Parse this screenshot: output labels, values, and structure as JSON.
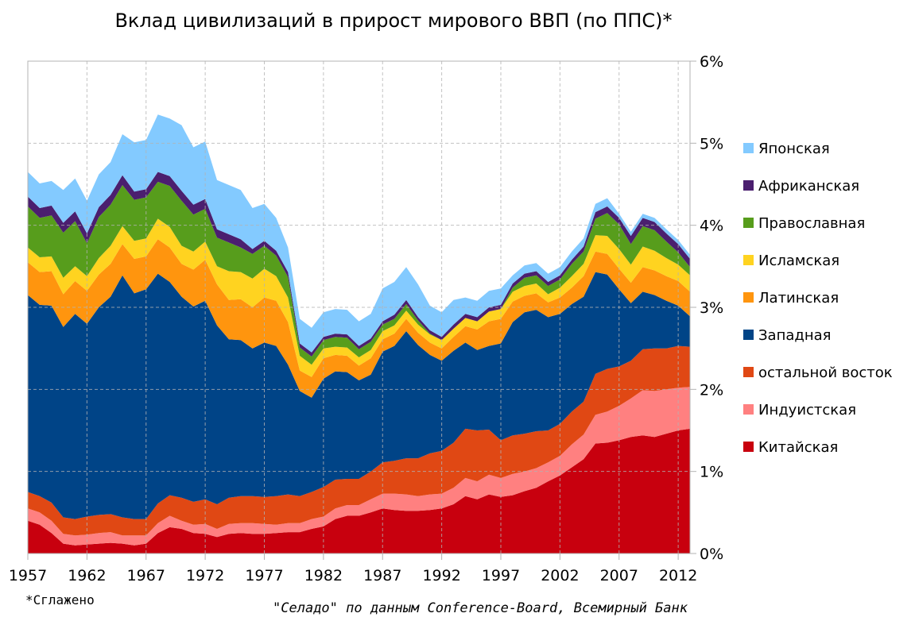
{
  "chart_data": {
    "type": "area",
    "stacked": true,
    "title": "Вклад цивилизаций в прирост мирового ВВП (по ППС)*",
    "footnote": "*Сглажено",
    "source": "\"Селадо\" по данным Conference-Board, Всемирный Банк",
    "y_axis_side": "right",
    "ylim": [
      0,
      6
    ],
    "y_ticks": [
      {
        "value": 0,
        "label": "0%"
      },
      {
        "value": 1,
        "label": "1%"
      },
      {
        "value": 2,
        "label": "2%"
      },
      {
        "value": 3,
        "label": "3%"
      },
      {
        "value": 4,
        "label": "4%"
      },
      {
        "value": 5,
        "label": "5%"
      },
      {
        "value": 6,
        "label": "6%"
      }
    ],
    "x_ticks": [
      {
        "value": 1957,
        "label": "1957"
      },
      {
        "value": 1962,
        "label": "1962"
      },
      {
        "value": 1967,
        "label": "1967"
      },
      {
        "value": 1972,
        "label": "1972"
      },
      {
        "value": 1977,
        "label": "1977"
      },
      {
        "value": 1982,
        "label": "1982"
      },
      {
        "value": 1987,
        "label": "1987"
      },
      {
        "value": 1992,
        "label": "1992"
      },
      {
        "value": 1997,
        "label": "1997"
      },
      {
        "value": 2002,
        "label": "2002"
      },
      {
        "value": 2007,
        "label": "2007"
      },
      {
        "value": 2012,
        "label": "2012"
      }
    ],
    "xlim": [
      1957,
      2013
    ],
    "grid": true,
    "legend_position": "right",
    "x": [
      1957,
      1958,
      1959,
      1960,
      1961,
      1962,
      1963,
      1964,
      1965,
      1966,
      1967,
      1968,
      1969,
      1970,
      1971,
      1972,
      1973,
      1974,
      1975,
      1976,
      1977,
      1978,
      1979,
      1980,
      1981,
      1982,
      1983,
      1984,
      1985,
      1986,
      1987,
      1988,
      1989,
      1990,
      1991,
      1992,
      1993,
      1994,
      1995,
      1996,
      1997,
      1998,
      1999,
      2000,
      2001,
      2002,
      2003,
      2004,
      2005,
      2006,
      2007,
      2008,
      2009,
      2010,
      2011,
      2012,
      2013
    ],
    "series": [
      {
        "name": "Китайская",
        "color": "#c8000e",
        "values": [
          0.4,
          0.35,
          0.25,
          0.12,
          0.1,
          0.11,
          0.12,
          0.13,
          0.12,
          0.1,
          0.12,
          0.25,
          0.32,
          0.3,
          0.25,
          0.24,
          0.2,
          0.24,
          0.25,
          0.24,
          0.24,
          0.25,
          0.26,
          0.26,
          0.3,
          0.33,
          0.42,
          0.46,
          0.46,
          0.5,
          0.55,
          0.53,
          0.52,
          0.52,
          0.53,
          0.55,
          0.6,
          0.7,
          0.66,
          0.72,
          0.69,
          0.71,
          0.76,
          0.8,
          0.88,
          0.95,
          1.05,
          1.15,
          1.34,
          1.35,
          1.38,
          1.42,
          1.44,
          1.42,
          1.46,
          1.5,
          1.52
        ]
      },
      {
        "name": "Индуистская",
        "color": "#ff8080",
        "values": [
          0.15,
          0.15,
          0.15,
          0.12,
          0.12,
          0.12,
          0.13,
          0.13,
          0.1,
          0.12,
          0.1,
          0.12,
          0.14,
          0.1,
          0.1,
          0.12,
          0.1,
          0.12,
          0.12,
          0.13,
          0.12,
          0.1,
          0.11,
          0.11,
          0.12,
          0.12,
          0.13,
          0.13,
          0.13,
          0.16,
          0.18,
          0.2,
          0.2,
          0.18,
          0.19,
          0.18,
          0.2,
          0.22,
          0.22,
          0.24,
          0.23,
          0.26,
          0.24,
          0.24,
          0.23,
          0.24,
          0.28,
          0.3,
          0.35,
          0.38,
          0.42,
          0.47,
          0.55,
          0.56,
          0.54,
          0.52,
          0.51
        ]
      },
      {
        "name": "остальной восток",
        "color": "#e04814",
        "values": [
          0.2,
          0.2,
          0.22,
          0.2,
          0.2,
          0.22,
          0.22,
          0.22,
          0.22,
          0.2,
          0.2,
          0.24,
          0.25,
          0.28,
          0.28,
          0.3,
          0.3,
          0.32,
          0.33,
          0.33,
          0.33,
          0.35,
          0.35,
          0.33,
          0.33,
          0.36,
          0.35,
          0.32,
          0.32,
          0.34,
          0.38,
          0.4,
          0.44,
          0.46,
          0.5,
          0.52,
          0.55,
          0.6,
          0.62,
          0.55,
          0.46,
          0.47,
          0.46,
          0.45,
          0.39,
          0.39,
          0.4,
          0.4,
          0.5,
          0.52,
          0.48,
          0.46,
          0.5,
          0.52,
          0.5,
          0.51,
          0.49
        ]
      },
      {
        "name": "Западная",
        "color": "#004487",
        "values": [
          2.4,
          2.33,
          2.4,
          2.32,
          2.5,
          2.35,
          2.53,
          2.65,
          2.95,
          2.75,
          2.8,
          2.8,
          2.6,
          2.45,
          2.38,
          2.42,
          2.18,
          1.93,
          1.9,
          1.8,
          1.88,
          1.83,
          1.58,
          1.28,
          1.15,
          1.32,
          1.32,
          1.3,
          1.2,
          1.18,
          1.35,
          1.4,
          1.55,
          1.38,
          1.2,
          1.1,
          1.12,
          1.05,
          0.98,
          1.02,
          1.18,
          1.38,
          1.48,
          1.48,
          1.38,
          1.34,
          1.31,
          1.28,
          1.24,
          1.15,
          0.94,
          0.7,
          0.7,
          0.65,
          0.58,
          0.49,
          0.37
        ]
      },
      {
        "name": "Латинская",
        "color": "#ff950e",
        "values": [
          0.4,
          0.4,
          0.42,
          0.4,
          0.4,
          0.4,
          0.4,
          0.4,
          0.38,
          0.42,
          0.4,
          0.42,
          0.42,
          0.4,
          0.45,
          0.5,
          0.5,
          0.48,
          0.5,
          0.5,
          0.55,
          0.55,
          0.52,
          0.25,
          0.25,
          0.25,
          0.2,
          0.2,
          0.18,
          0.2,
          0.15,
          0.15,
          0.15,
          0.15,
          0.15,
          0.15,
          0.17,
          0.2,
          0.25,
          0.3,
          0.3,
          0.25,
          0.2,
          0.2,
          0.18,
          0.2,
          0.2,
          0.25,
          0.25,
          0.25,
          0.25,
          0.25,
          0.3,
          0.3,
          0.3,
          0.3,
          0.3
        ]
      },
      {
        "name": "Исламская",
        "color": "#ffd320",
        "values": [
          0.18,
          0.18,
          0.18,
          0.2,
          0.18,
          0.18,
          0.2,
          0.22,
          0.22,
          0.22,
          0.22,
          0.25,
          0.25,
          0.22,
          0.22,
          0.22,
          0.22,
          0.35,
          0.33,
          0.35,
          0.35,
          0.3,
          0.3,
          0.18,
          0.15,
          0.12,
          0.1,
          0.1,
          0.1,
          0.1,
          0.1,
          0.1,
          0.1,
          0.1,
          0.1,
          0.1,
          0.1,
          0.1,
          0.1,
          0.12,
          0.12,
          0.12,
          0.12,
          0.12,
          0.1,
          0.12,
          0.14,
          0.15,
          0.2,
          0.22,
          0.24,
          0.22,
          0.25,
          0.24,
          0.22,
          0.2,
          0.2
        ]
      },
      {
        "name": "Православная",
        "color": "#579d1c",
        "values": [
          0.5,
          0.48,
          0.5,
          0.55,
          0.55,
          0.4,
          0.5,
          0.5,
          0.5,
          0.5,
          0.5,
          0.45,
          0.5,
          0.55,
          0.45,
          0.4,
          0.35,
          0.35,
          0.3,
          0.3,
          0.28,
          0.25,
          0.25,
          0.1,
          0.1,
          0.1,
          0.12,
          0.12,
          0.1,
          0.1,
          0.08,
          0.08,
          0.08,
          0.05,
          0.01,
          0.0,
          0.0,
          0.0,
          0.0,
          0.0,
          0.0,
          0.05,
          0.1,
          0.1,
          0.1,
          0.1,
          0.15,
          0.15,
          0.2,
          0.28,
          0.3,
          0.25,
          0.25,
          0.25,
          0.2,
          0.15,
          0.1
        ]
      },
      {
        "name": "Африканская",
        "color": "#4b1f6f",
        "values": [
          0.12,
          0.12,
          0.12,
          0.12,
          0.12,
          0.12,
          0.12,
          0.12,
          0.12,
          0.1,
          0.1,
          0.12,
          0.12,
          0.12,
          0.12,
          0.12,
          0.1,
          0.1,
          0.1,
          0.06,
          0.06,
          0.06,
          0.06,
          0.05,
          0.05,
          0.04,
          0.04,
          0.04,
          0.04,
          0.04,
          0.04,
          0.05,
          0.05,
          0.04,
          0.04,
          0.04,
          0.05,
          0.05,
          0.05,
          0.05,
          0.05,
          0.05,
          0.05,
          0.05,
          0.05,
          0.05,
          0.05,
          0.06,
          0.08,
          0.08,
          0.08,
          0.1,
          0.1,
          0.1,
          0.1,
          0.1,
          0.1
        ]
      },
      {
        "name": "Японская",
        "color": "#83caff",
        "values": [
          0.3,
          0.3,
          0.3,
          0.4,
          0.4,
          0.4,
          0.4,
          0.4,
          0.5,
          0.6,
          0.6,
          0.7,
          0.7,
          0.8,
          0.7,
          0.7,
          0.6,
          0.6,
          0.6,
          0.5,
          0.45,
          0.4,
          0.3,
          0.3,
          0.3,
          0.3,
          0.3,
          0.3,
          0.3,
          0.3,
          0.4,
          0.4,
          0.4,
          0.4,
          0.3,
          0.3,
          0.3,
          0.2,
          0.2,
          0.2,
          0.2,
          0.1,
          0.1,
          0.1,
          0.1,
          0.1,
          0.1,
          0.1,
          0.1,
          0.1,
          0.05,
          0.05,
          0.05,
          0.05,
          0.05,
          0.05,
          0.05
        ]
      }
    ]
  }
}
